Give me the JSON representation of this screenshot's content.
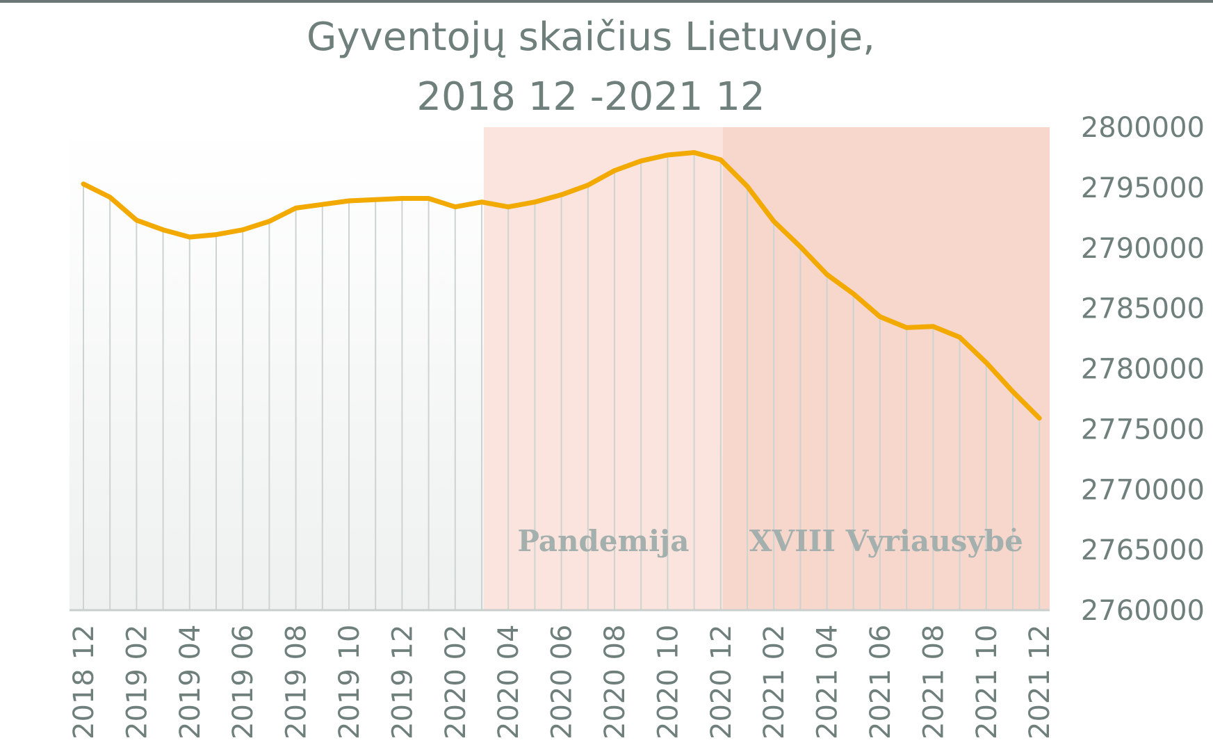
{
  "chart_data": {
    "type": "line",
    "title": [
      "Gyventojų skaičius Lietuvoje,",
      "2018 12 -2021 12"
    ],
    "xlabel": "",
    "ylabel": "",
    "categories": [
      "2018 12",
      "2019 01",
      "2019 02",
      "2019 03",
      "2019 04",
      "2019 05",
      "2019 06",
      "2019 07",
      "2019 08",
      "2019 09",
      "2019 10",
      "2019 11",
      "2019 12",
      "2020 01",
      "2020 02",
      "2020 03",
      "2020 04",
      "2020 05",
      "2020 06",
      "2020 07",
      "2020 08",
      "2020 09",
      "2020 10",
      "2020 11",
      "2020 12",
      "2021 01",
      "2021 02",
      "2021 03",
      "2021 04",
      "2021 05",
      "2021 06",
      "2021 07",
      "2021 08",
      "2021 09",
      "2021 10",
      "2021 11",
      "2021 12"
    ],
    "tick_labels": [
      "2018 12",
      "2019 02",
      "2019 04",
      "2019 06",
      "2019 08",
      "2019 10",
      "2019 12",
      "2020 02",
      "2020 04",
      "2020 06",
      "2020 08",
      "2020 10",
      "2020 12",
      "2021 02",
      "2021 04",
      "2021 06",
      "2021 08",
      "2021 10",
      "2021 12"
    ],
    "series": [
      {
        "values": [
          2795300,
          2794200,
          2792300,
          2791500,
          2790900,
          2791100,
          2791500,
          2792200,
          2793300,
          2793600,
          2793900,
          2794000,
          2794100,
          2794100,
          2793400,
          2793800,
          2793400,
          2793800,
          2794400,
          2795200,
          2796400,
          2797200,
          2797700,
          2797900,
          2797300,
          2795100,
          2792200,
          2790100,
          2787800,
          2786200,
          2784300,
          2783400,
          2783500,
          2782600,
          2780500,
          2778100,
          2775900
        ],
        "color": "#f2a900"
      }
    ],
    "ylim": [
      2760000,
      2800000
    ],
    "yticks": [
      2760000,
      2765000,
      2770000,
      2775000,
      2780000,
      2785000,
      2790000,
      2795000,
      2800000
    ],
    "y_axis_position": "right",
    "grid": "vertical",
    "regions": [
      {
        "label": "Pandemija",
        "start": "2020 03",
        "end": "2020 12",
        "color": "#fbe4dd"
      },
      {
        "label": "XVIII Vyriausybė",
        "start": "2020 12",
        "end": "2021 12",
        "color": "#f7d6cc"
      }
    ]
  }
}
